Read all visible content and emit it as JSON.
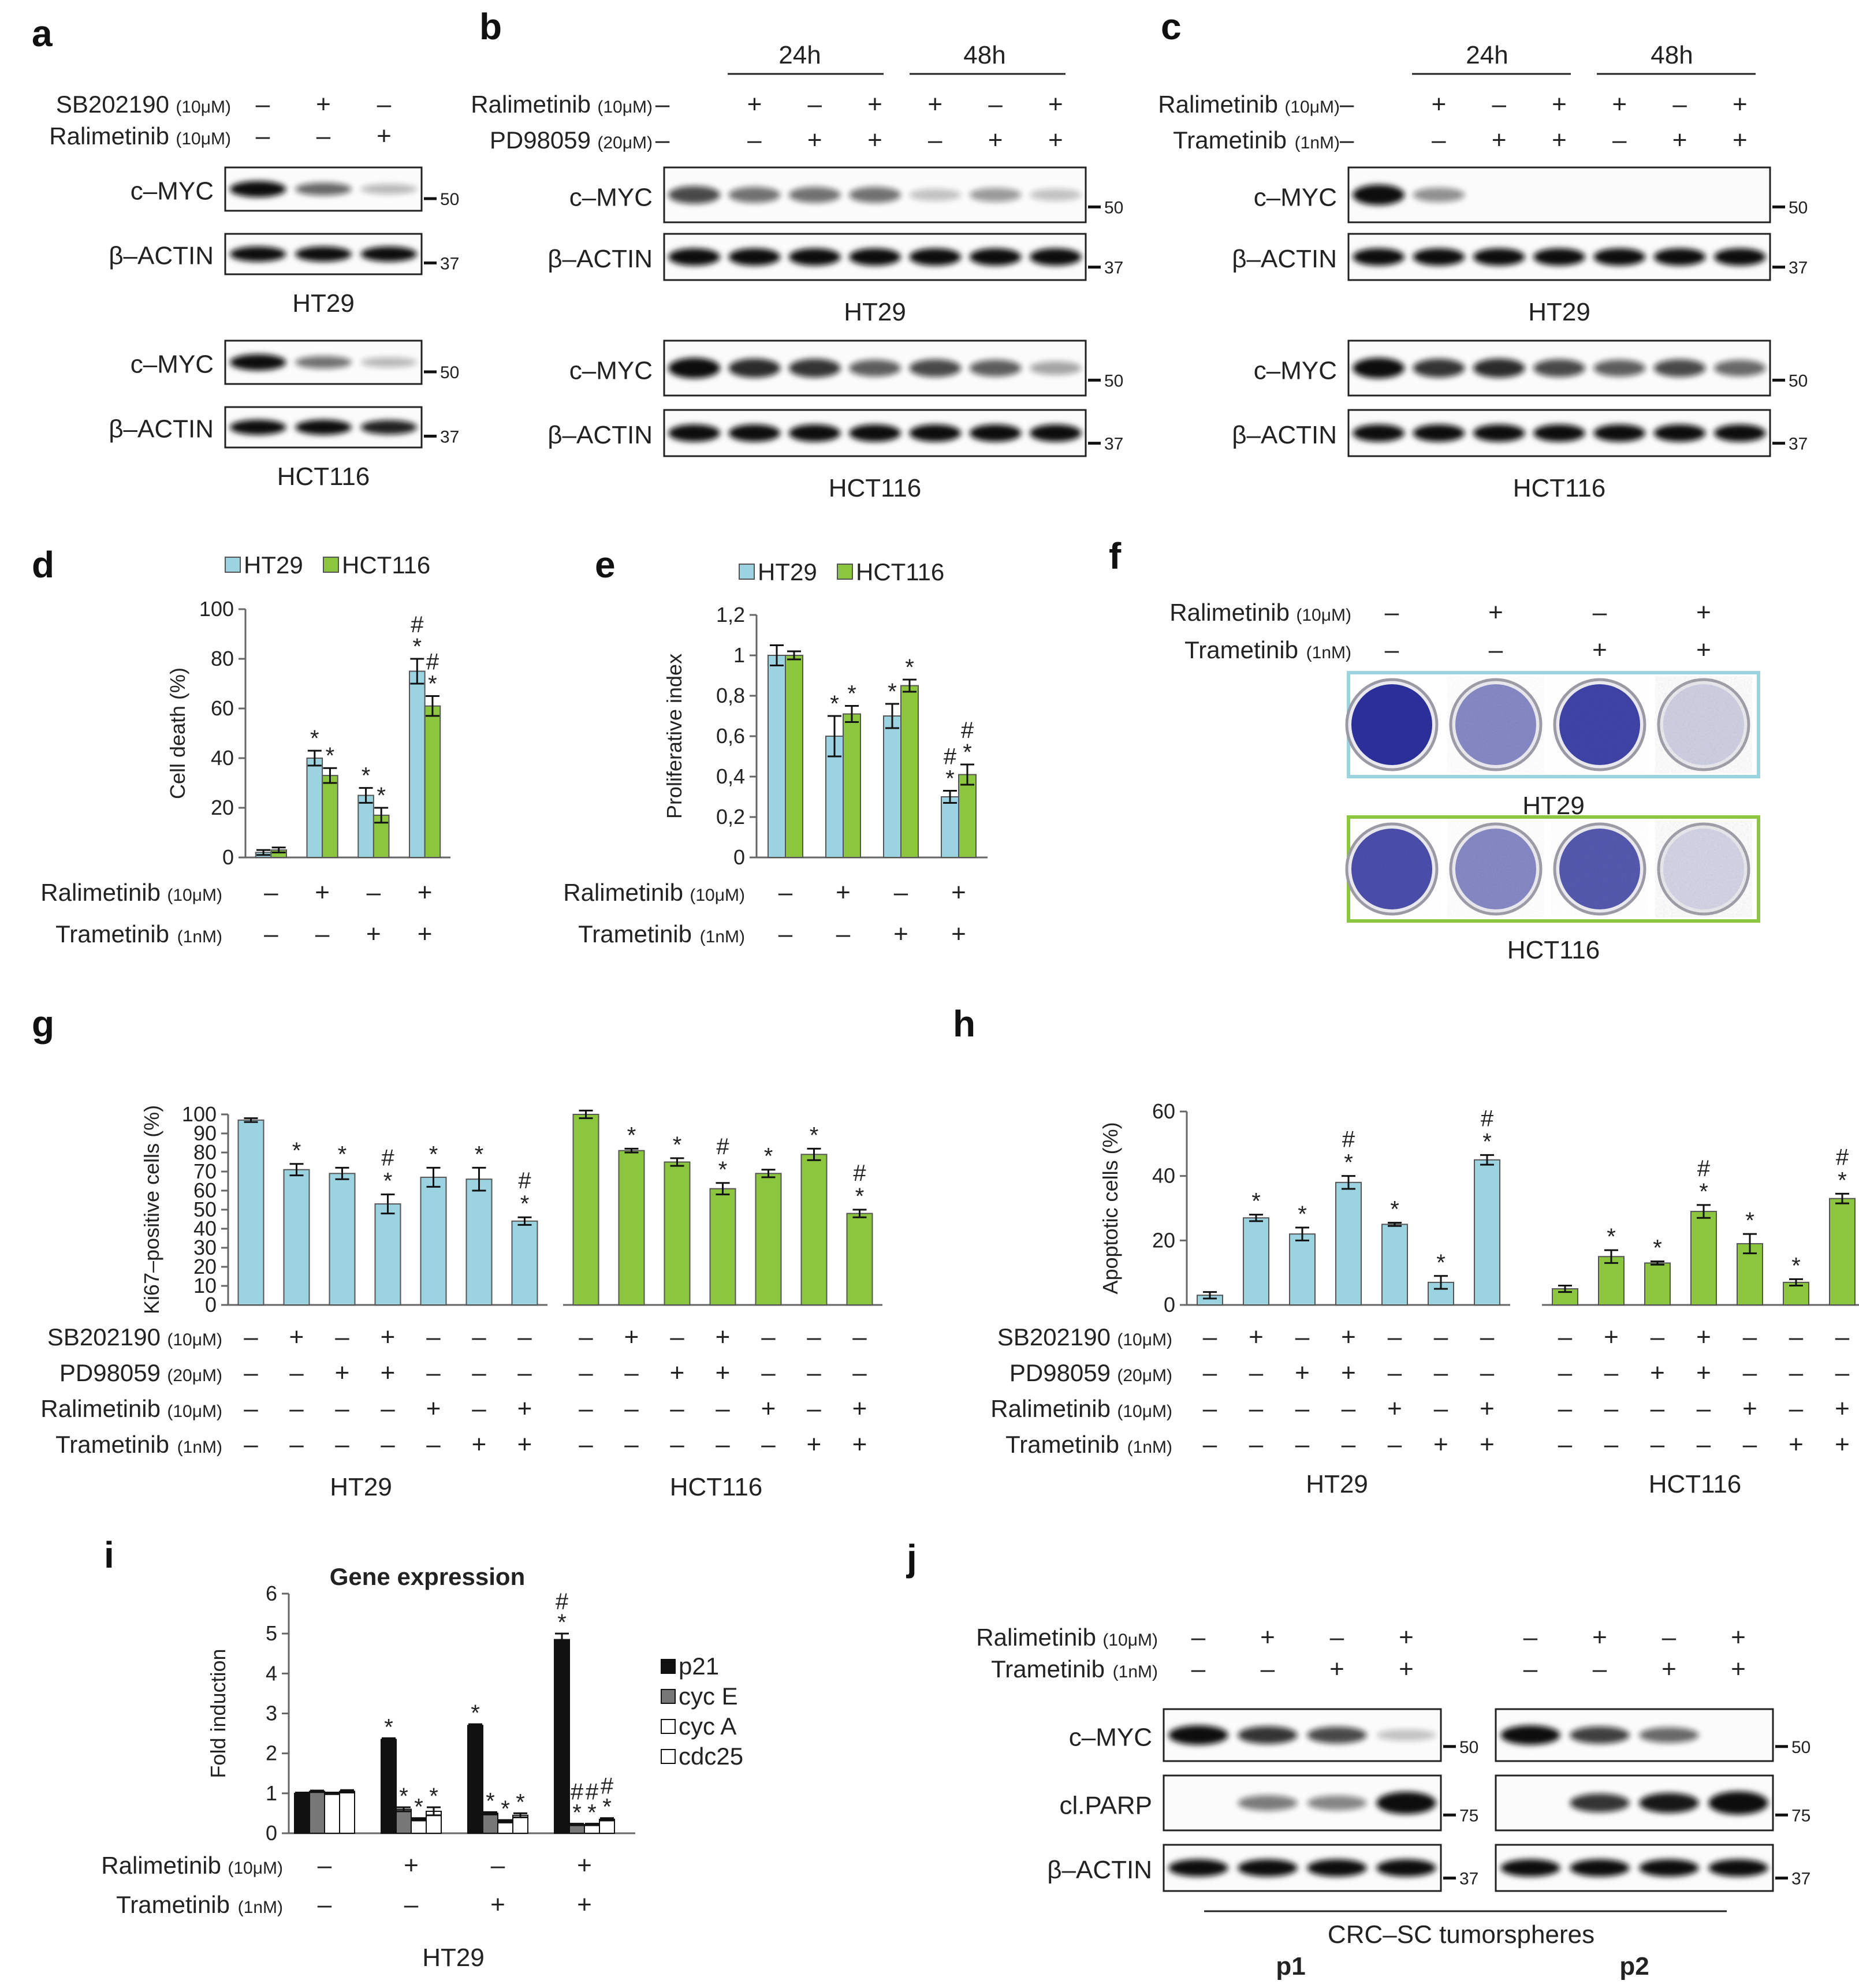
{
  "colors": {
    "ht29": "#9cd3e0",
    "hct116": "#8cc63f",
    "ht29_frame": "#9cd3e0",
    "hct116_frame": "#8cc63f",
    "plate": "#2a2f9a"
  },
  "panels": {
    "a": {
      "label": "a",
      "treatments": [
        {
          "name": "SB202190",
          "conc": "(10μM)",
          "signs": [
            "–",
            "+",
            "–"
          ]
        },
        {
          "name": "Ralimetinib",
          "conc": "(10μM)",
          "signs": [
            "–",
            "–",
            "+"
          ]
        }
      ],
      "blots": [
        {
          "cell": "HT29",
          "rows": [
            {
              "label": "c–MYC",
              "mw": "50",
              "intensity": [
                1,
                0.55,
                0.15
              ]
            },
            {
              "label": "β–ACTIN",
              "mw": "37",
              "intensity": [
                1,
                1,
                1
              ]
            }
          ]
        },
        {
          "cell": "HCT116",
          "rows": [
            {
              "label": "c–MYC",
              "mw": "50",
              "intensity": [
                1,
                0.5,
                0.15
              ]
            },
            {
              "label": "β–ACTIN",
              "mw": "37",
              "intensity": [
                1,
                1,
                0.9
              ]
            }
          ]
        }
      ]
    },
    "b": {
      "label": "b",
      "timepoints": [
        "24h",
        "48h"
      ],
      "treatments": [
        {
          "name": "Ralimetinib",
          "conc": "(10μM)",
          "signs": [
            "–",
            "+",
            "–",
            "+",
            "+",
            "–",
            "+"
          ]
        },
        {
          "name": "PD98059",
          "conc": "(20μM)",
          "signs": [
            "–",
            "–",
            "+",
            "+",
            "–",
            "+",
            "+"
          ]
        }
      ],
      "blots": [
        {
          "cell": "HT29",
          "rows": [
            {
              "label": "c–MYC",
              "mw": "50",
              "intensity": [
                0.7,
                0.5,
                0.5,
                0.5,
                0.1,
                0.3,
                0.1
              ]
            },
            {
              "label": "β–ACTIN",
              "mw": "37",
              "intensity": [
                1,
                1,
                1,
                1,
                1,
                1,
                1
              ]
            }
          ]
        },
        {
          "cell": "HCT116",
          "rows": [
            {
              "label": "c–MYC",
              "mw": "50",
              "intensity": [
                1,
                0.85,
                0.8,
                0.6,
                0.7,
                0.6,
                0.25
              ]
            },
            {
              "label": "β–ACTIN",
              "mw": "37",
              "intensity": [
                1,
                1,
                1,
                1,
                1,
                1,
                1
              ]
            }
          ]
        }
      ]
    },
    "c": {
      "label": "c",
      "timepoints": [
        "24h",
        "48h"
      ],
      "treatments": [
        {
          "name": "Ralimetinib",
          "conc": "(10μM)",
          "signs": [
            "–",
            "+",
            "–",
            "+",
            "+",
            "–",
            "+"
          ]
        },
        {
          "name": "Trametinib",
          "conc": "(1nM)",
          "signs": [
            "–",
            "–",
            "+",
            "+",
            "–",
            "+",
            "+"
          ]
        }
      ],
      "blots": [
        {
          "cell": "HT29",
          "rows": [
            {
              "label": "c–MYC",
              "mw": "50",
              "intensity": [
                1,
                0.35,
                0,
                0,
                0,
                0,
                0
              ]
            },
            {
              "label": "β–ACTIN",
              "mw": "37",
              "intensity": [
                1,
                1,
                1,
                1,
                1,
                1,
                1
              ]
            }
          ]
        },
        {
          "cell": "HCT116",
          "rows": [
            {
              "label": "c–MYC",
              "mw": "50",
              "intensity": [
                1,
                0.8,
                0.85,
                0.7,
                0.6,
                0.7,
                0.55
              ]
            },
            {
              "label": "β–ACTIN",
              "mw": "37",
              "intensity": [
                1,
                1,
                1,
                1,
                1,
                1,
                1
              ]
            }
          ]
        }
      ]
    },
    "f": {
      "label": "f",
      "treatments": [
        {
          "name": "Ralimetinib",
          "conc": "(10μM)",
          "signs": [
            "–",
            "+",
            "–",
            "+"
          ]
        },
        {
          "name": "Trametinib",
          "conc": "(1nM)",
          "signs": [
            "–",
            "–",
            "+",
            "+"
          ]
        }
      ],
      "plates": [
        {
          "cell": "HT29",
          "density": [
            1,
            0.55,
            0.9,
            0.15
          ]
        },
        {
          "cell": "HCT116",
          "density": [
            0.85,
            0.55,
            0.8,
            0.12
          ]
        }
      ]
    },
    "j": {
      "label": "j",
      "treatments": [
        {
          "name": "Ralimetinib",
          "conc": "(10μM)",
          "signs": [
            "–",
            "+",
            "–",
            "+",
            "–",
            "+",
            "–",
            "+"
          ]
        },
        {
          "name": "Trametinib",
          "conc": "(1nM)",
          "signs": [
            "–",
            "–",
            "+",
            "+",
            "–",
            "–",
            "+",
            "+"
          ]
        }
      ],
      "rows": [
        {
          "label": "c–MYC",
          "mw": "50",
          "intensity": [
            1,
            0.8,
            0.7,
            0.1,
            1,
            0.75,
            0.55,
            0
          ]
        },
        {
          "label": "cl.PARP",
          "mw": "75",
          "intensity": [
            0,
            0.45,
            0.4,
            1.2,
            0,
            0.8,
            0.95,
            1.3
          ]
        },
        {
          "label": "β–ACTIN",
          "mw": "37",
          "intensity": [
            1,
            1,
            1,
            1,
            1,
            1,
            1,
            1
          ]
        }
      ],
      "group_label": "CRC–SC tumorspheres",
      "subgroups": [
        "p1",
        "p2"
      ]
    }
  },
  "chart_data": [
    {
      "id": "d",
      "type": "bar",
      "categories": [
        "1",
        "2",
        "3",
        "4"
      ],
      "series": [
        {
          "name": "HT29",
          "values": [
            2,
            40,
            25,
            75
          ],
          "err": [
            1,
            3,
            3,
            5
          ]
        },
        {
          "name": "HCT116",
          "values": [
            3,
            33,
            17,
            61
          ],
          "err": [
            1,
            3,
            3,
            4
          ]
        }
      ],
      "ylabel": "Cell death (%)",
      "ylim": [
        0,
        100
      ],
      "yticks": [
        "0",
        "20",
        "40",
        "60",
        "80",
        "100"
      ],
      "marks": [
        [
          "",
          ""
        ],
        [
          "*",
          "*"
        ],
        [
          "*",
          "*"
        ],
        [
          "#\n*",
          "#\n*"
        ]
      ],
      "treatments": [
        {
          "name": "Ralimetinib",
          "conc": "(10μM)",
          "signs": [
            "–",
            "+",
            "–",
            "+"
          ]
        },
        {
          "name": "Trametinib",
          "conc": "(1nM)",
          "signs": [
            "–",
            "–",
            "+",
            "+"
          ]
        }
      ]
    },
    {
      "id": "e",
      "type": "bar",
      "categories": [
        "1",
        "2",
        "3",
        "4"
      ],
      "series": [
        {
          "name": "HT29",
          "values": [
            1.0,
            0.6,
            0.7,
            0.3
          ],
          "err": [
            0.05,
            0.1,
            0.06,
            0.03
          ]
        },
        {
          "name": "HCT116",
          "values": [
            1.0,
            0.71,
            0.85,
            0.41
          ],
          "err": [
            0.02,
            0.04,
            0.03,
            0.05
          ]
        }
      ],
      "ylabel": "Proliferative index",
      "ylim": [
        0,
        1.2
      ],
      "yticks": [
        "0",
        "0,2",
        "0,4",
        "0,6",
        "0,8",
        "1",
        "1,2"
      ],
      "marks": [
        [
          "",
          ""
        ],
        [
          "*",
          "*"
        ],
        [
          "*",
          "*"
        ],
        [
          "#\n*",
          "#\n*"
        ]
      ],
      "treatments": [
        {
          "name": "Ralimetinib",
          "conc": "(10μM)",
          "signs": [
            "–",
            "+",
            "–",
            "+"
          ]
        },
        {
          "name": "Trametinib",
          "conc": "(1nM)",
          "signs": [
            "–",
            "–",
            "+",
            "+"
          ]
        }
      ]
    },
    {
      "id": "g",
      "type": "bar",
      "groups": [
        {
          "name": "HT29",
          "values": [
            97,
            71,
            69,
            53,
            67,
            66,
            44
          ],
          "err": [
            1,
            3,
            3,
            5,
            5,
            6,
            2
          ],
          "marks": [
            "",
            "*",
            "*",
            "#\n*",
            "*",
            "*",
            "#\n*"
          ]
        },
        {
          "name": "HCT116",
          "values": [
            100,
            81,
            75,
            61,
            69,
            79,
            48
          ],
          "err": [
            2,
            1,
            2,
            3,
            2,
            3,
            2
          ],
          "marks": [
            "",
            "*",
            "*",
            "#\n*",
            "*",
            "*",
            "#\n*"
          ]
        }
      ],
      "ylabel": "Ki67–positive cells (%)",
      "ylim": [
        0,
        100
      ],
      "yticks": [
        "0",
        "10",
        "20",
        "30",
        "40",
        "50",
        "60",
        "70",
        "80",
        "90",
        "100"
      ],
      "treatments": [
        {
          "name": "SB202190",
          "conc": "(10μM)",
          "signs": [
            "–",
            "+",
            "–",
            "+",
            "–",
            "–",
            "–"
          ]
        },
        {
          "name": "PD98059",
          "conc": "(20μM)",
          "signs": [
            "–",
            "–",
            "+",
            "+",
            "–",
            "–",
            "–"
          ]
        },
        {
          "name": "Ralimetinib",
          "conc": "(10μM)",
          "signs": [
            "–",
            "–",
            "–",
            "–",
            "+",
            "–",
            "+"
          ]
        },
        {
          "name": "Trametinib",
          "conc": "(1nM)",
          "signs": [
            "–",
            "–",
            "–",
            "–",
            "–",
            "+",
            "+"
          ]
        }
      ]
    },
    {
      "id": "h",
      "type": "bar",
      "groups": [
        {
          "name": "HT29",
          "values": [
            3,
            27,
            22,
            38,
            25,
            7,
            45
          ],
          "err": [
            1,
            1,
            2,
            2,
            0.5,
            2,
            1.5
          ],
          "marks": [
            "",
            "*",
            "*",
            "#\n*",
            "*",
            "*",
            "#\n*"
          ]
        },
        {
          "name": "HCT116",
          "values": [
            5,
            15,
            13,
            29,
            19,
            7,
            33
          ],
          "err": [
            1,
            2,
            0.5,
            2,
            3,
            1,
            1.5
          ],
          "marks": [
            "",
            "*",
            "*",
            "#\n*",
            "*",
            "*",
            "#\n*"
          ]
        }
      ],
      "ylabel": "Apoptotic cells (%)",
      "ylim": [
        0,
        60
      ],
      "yticks": [
        "0",
        "20",
        "40",
        "60"
      ],
      "treatments": [
        {
          "name": "SB202190",
          "conc": "(10μM)",
          "signs": [
            "–",
            "+",
            "–",
            "+",
            "–",
            "–",
            "–"
          ]
        },
        {
          "name": "PD98059",
          "conc": "(20μM)",
          "signs": [
            "–",
            "–",
            "+",
            "+",
            "–",
            "–",
            "–"
          ]
        },
        {
          "name": "Ralimetinib",
          "conc": "(10μM)",
          "signs": [
            "–",
            "–",
            "–",
            "–",
            "+",
            "–",
            "+"
          ]
        },
        {
          "name": "Trametinib",
          "conc": "(1nM)",
          "signs": [
            "–",
            "–",
            "–",
            "–",
            "–",
            "+",
            "+"
          ]
        }
      ]
    },
    {
      "id": "i",
      "type": "bar",
      "title": "Gene expression",
      "categories": [
        "1",
        "2",
        "3",
        "4"
      ],
      "series": [
        {
          "name": "p21",
          "color": "#111111",
          "values": [
            1,
            2.35,
            2.7,
            4.85
          ],
          "err": [
            0.02,
            0.03,
            0.03,
            0.15
          ]
        },
        {
          "name": "cyc E",
          "color": "#777777",
          "values": [
            1.05,
            0.6,
            0.5,
            0.22
          ],
          "err": [
            0.02,
            0.05,
            0.03,
            0.02
          ]
        },
        {
          "name": "cyc A",
          "color": "#ffffff",
          "values": [
            1,
            0.35,
            0.3,
            0.22
          ],
          "err": [
            0.02,
            0.03,
            0.03,
            0.02
          ]
        },
        {
          "name": "cdc25",
          "color": "#ffffff",
          "values": [
            1.05,
            0.55,
            0.45,
            0.35
          ],
          "err": [
            0.03,
            0.1,
            0.05,
            0.03
          ]
        }
      ],
      "marks": [
        [
          "",
          "",
          "",
          ""
        ],
        [
          "*",
          "*",
          "*",
          "*"
        ],
        [
          "*",
          "*",
          "*",
          "*"
        ],
        [
          "#\n*",
          "#\n*",
          "#\n*",
          "#\n*"
        ]
      ],
      "ylabel": "Fold induction",
      "ylim": [
        0,
        6
      ],
      "yticks": [
        "0",
        "1",
        "2",
        "3",
        "4",
        "5",
        "6"
      ],
      "xcaption": "HT29",
      "treatments": [
        {
          "name": "Ralimetinib",
          "conc": "(10μM)",
          "signs": [
            "–",
            "+",
            "–",
            "+"
          ]
        },
        {
          "name": "Trametinib",
          "conc": "(1nM)",
          "signs": [
            "–",
            "–",
            "+",
            "+"
          ]
        }
      ]
    }
  ]
}
